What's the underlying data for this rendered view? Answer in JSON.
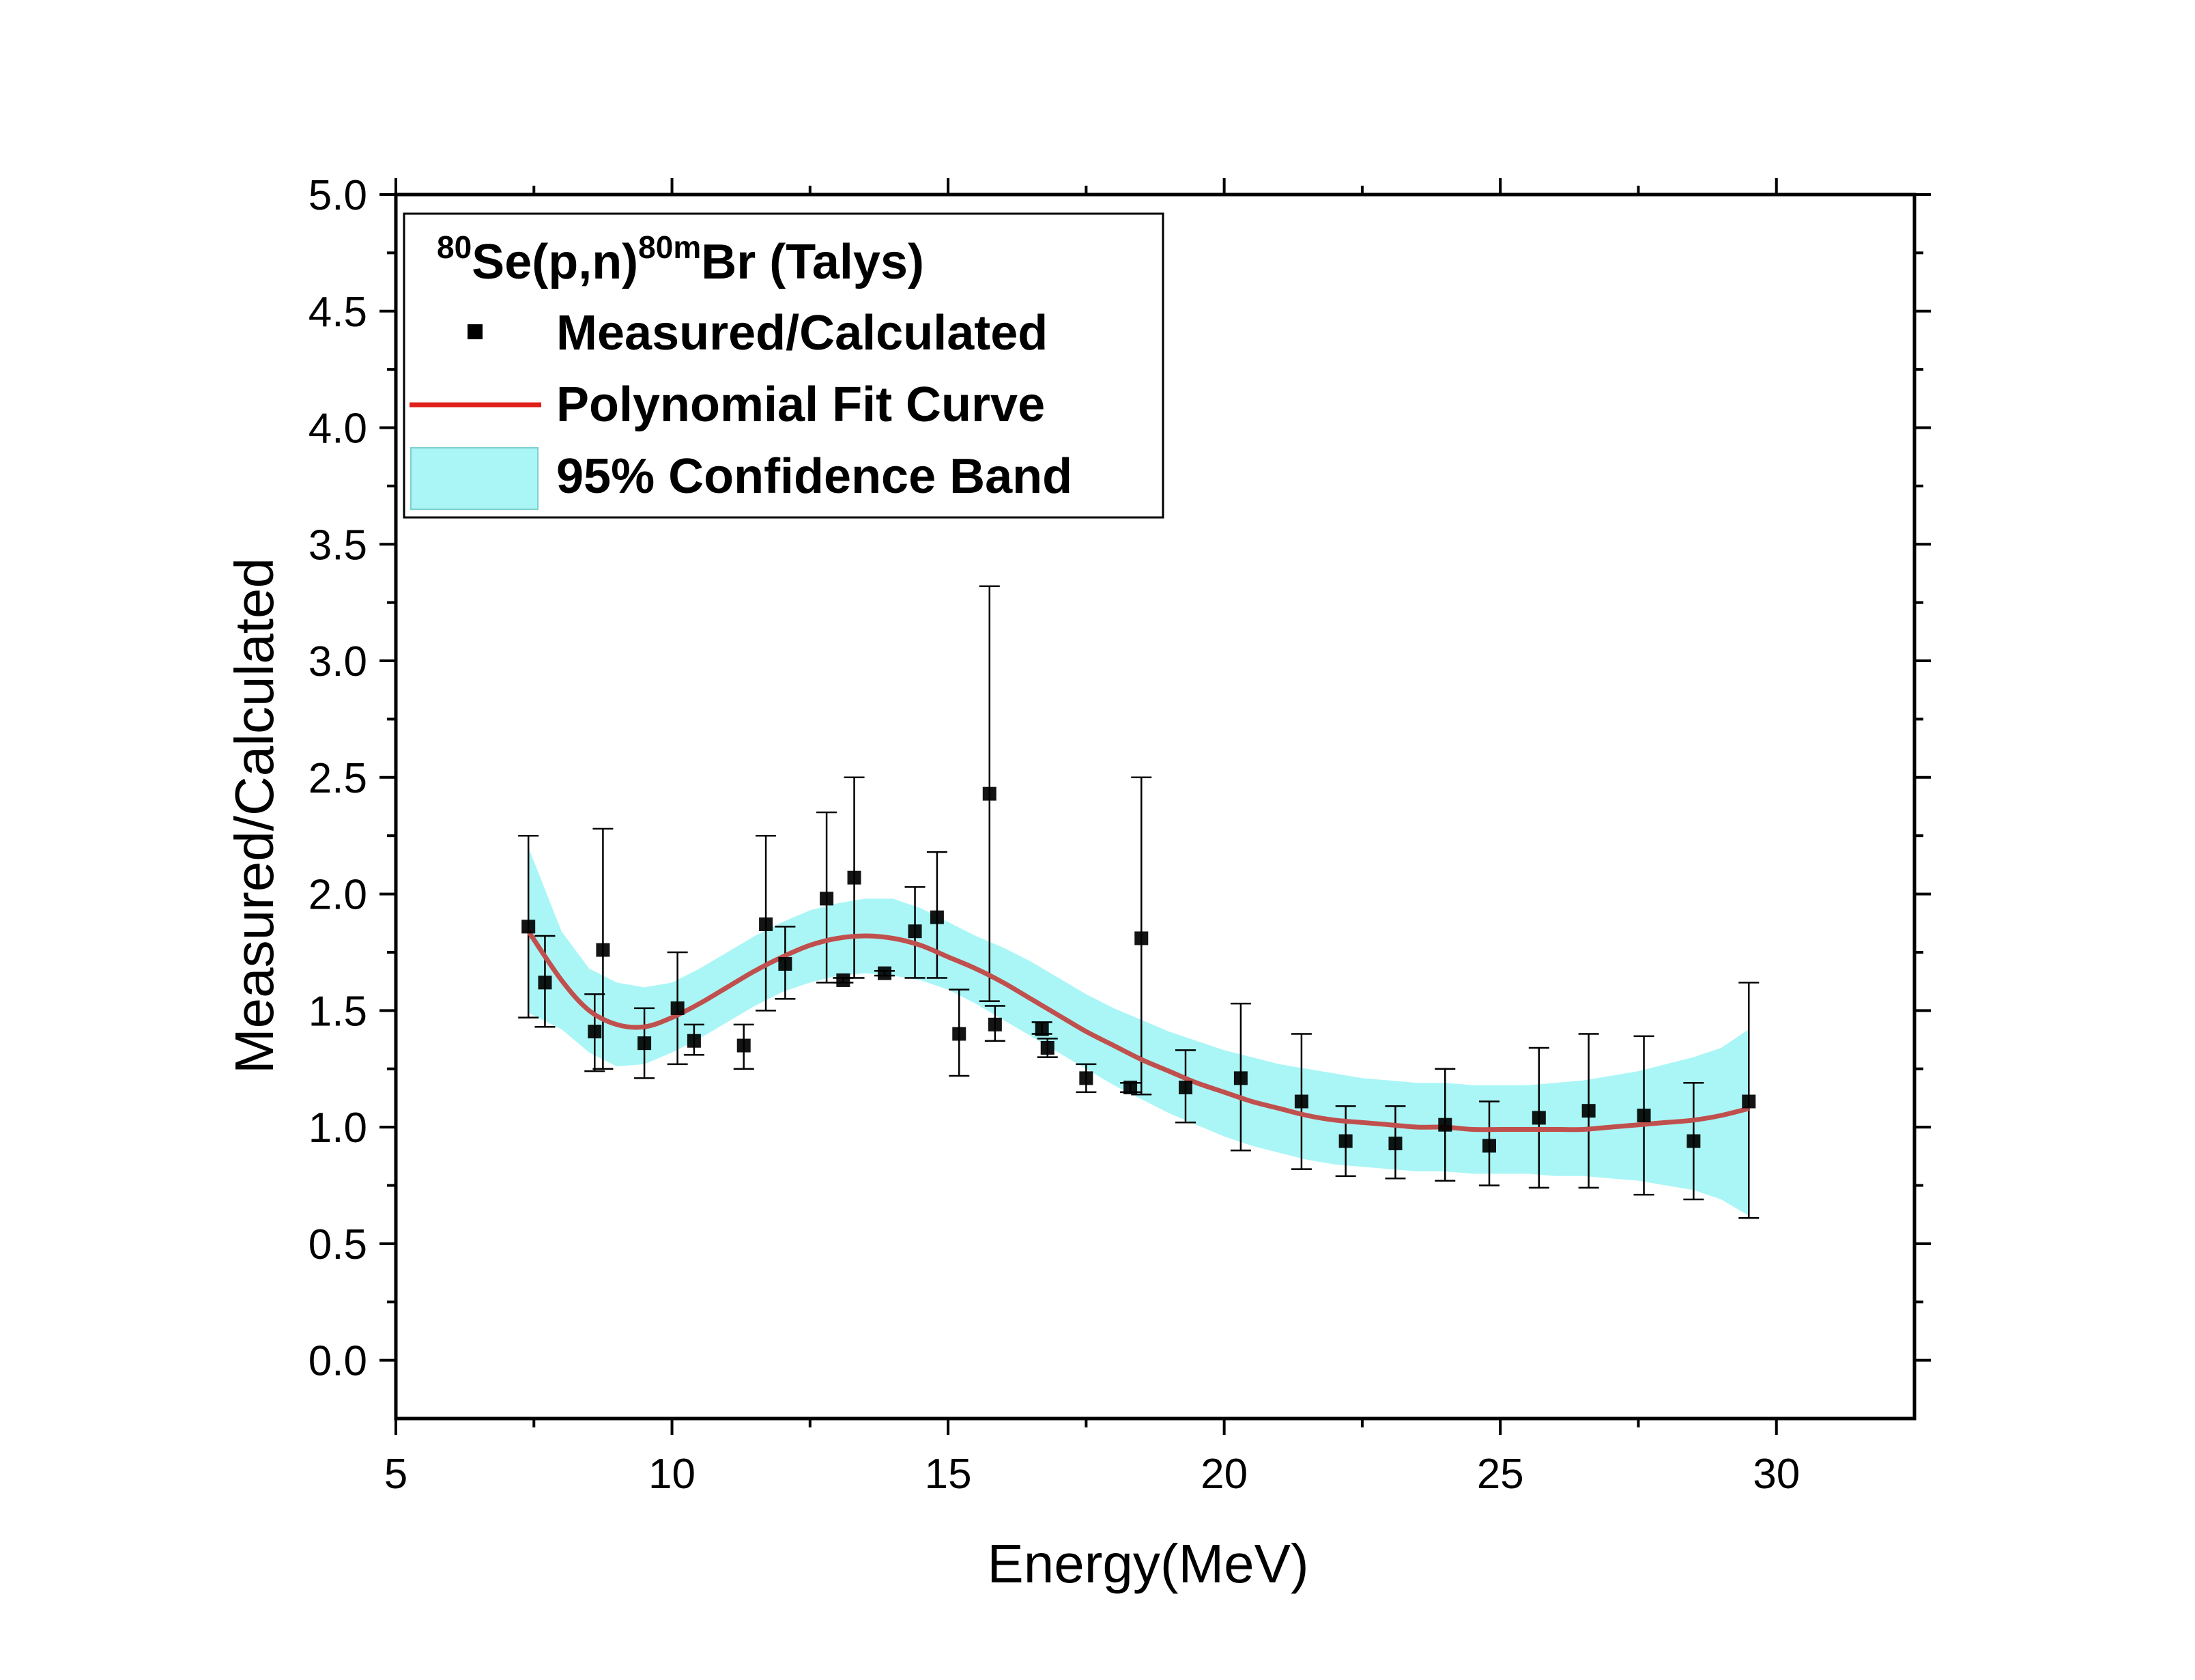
{
  "chart_data": {
    "type": "scatter",
    "title": {
      "sup1": "80",
      "main1": "Se(p,n)",
      "sup2": "80m",
      "main2": "Br (Talys)"
    },
    "xlabel": "Energy(MeV)",
    "ylabel": "Measured/Calculated",
    "xlim": [
      5,
      32.5
    ],
    "ylim": [
      -0.25,
      5.0
    ],
    "x_ticks": [
      5,
      10,
      15,
      20,
      25,
      30
    ],
    "x_tick_labels": [
      "5",
      "10",
      "15",
      "20",
      "25",
      "30"
    ],
    "y_ticks": [
      0.0,
      0.5,
      1.0,
      1.5,
      2.0,
      2.5,
      3.0,
      3.5,
      4.0,
      4.5,
      5.0
    ],
    "y_tick_labels": [
      "0.0",
      "0.5",
      "1.0",
      "1.5",
      "2.0",
      "2.5",
      "3.0",
      "3.5",
      "4.0",
      "4.5",
      "5.0"
    ],
    "legend": {
      "position": "top-left",
      "entries": [
        "Measured/Calculated",
        "Polynomial Fit Curve",
        "95% Confidence Band"
      ]
    },
    "colors": {
      "points": "#000000",
      "fit": "#c0504d",
      "fit_legend": "#e0201a",
      "band": "#aaf6f6",
      "band_edge": "#7ecece",
      "axes": "#000000"
    },
    "series": [
      {
        "name": "Measured/Calculated",
        "kind": "points-with-errorbars",
        "points": [
          {
            "x": 7.4,
            "y": 1.86,
            "lo": 1.47,
            "hi": 2.25
          },
          {
            "x": 7.7,
            "y": 1.62,
            "lo": 1.43,
            "hi": 1.82
          },
          {
            "x": 8.6,
            "y": 1.41,
            "lo": 1.24,
            "hi": 1.57
          },
          {
            "x": 8.75,
            "y": 1.76,
            "lo": 1.25,
            "hi": 2.28
          },
          {
            "x": 9.5,
            "y": 1.36,
            "lo": 1.21,
            "hi": 1.51
          },
          {
            "x": 10.1,
            "y": 1.51,
            "lo": 1.27,
            "hi": 1.75
          },
          {
            "x": 10.4,
            "y": 1.37,
            "lo": 1.31,
            "hi": 1.44
          },
          {
            "x": 11.3,
            "y": 1.35,
            "lo": 1.25,
            "hi": 1.44
          },
          {
            "x": 11.7,
            "y": 1.87,
            "lo": 1.5,
            "hi": 2.25
          },
          {
            "x": 12.05,
            "y": 1.7,
            "lo": 1.55,
            "hi": 1.86
          },
          {
            "x": 12.8,
            "y": 1.98,
            "lo": 1.62,
            "hi": 2.35
          },
          {
            "x": 13.1,
            "y": 1.63,
            "lo": 1.62,
            "hi": 1.64
          },
          {
            "x": 13.3,
            "y": 2.07,
            "lo": 1.64,
            "hi": 2.5
          },
          {
            "x": 13.85,
            "y": 1.66,
            "lo": 1.65,
            "hi": 1.67
          },
          {
            "x": 14.4,
            "y": 1.84,
            "lo": 1.64,
            "hi": 2.03
          },
          {
            "x": 14.8,
            "y": 1.9,
            "lo": 1.64,
            "hi": 2.18
          },
          {
            "x": 15.2,
            "y": 1.4,
            "lo": 1.22,
            "hi": 1.59
          },
          {
            "x": 15.75,
            "y": 2.43,
            "lo": 1.54,
            "hi": 3.32
          },
          {
            "x": 15.85,
            "y": 1.44,
            "lo": 1.37,
            "hi": 1.52
          },
          {
            "x": 16.7,
            "y": 1.42,
            "lo": 1.4,
            "hi": 1.45
          },
          {
            "x": 16.8,
            "y": 1.34,
            "lo": 1.3,
            "hi": 1.38
          },
          {
            "x": 17.5,
            "y": 1.21,
            "lo": 1.15,
            "hi": 1.27
          },
          {
            "x": 18.3,
            "y": 1.17,
            "lo": 1.15,
            "hi": 1.19
          },
          {
            "x": 18.5,
            "y": 1.81,
            "lo": 1.14,
            "hi": 2.5
          },
          {
            "x": 19.3,
            "y": 1.17,
            "lo": 1.02,
            "hi": 1.33
          },
          {
            "x": 20.3,
            "y": 1.21,
            "lo": 0.9,
            "hi": 1.53
          },
          {
            "x": 21.4,
            "y": 1.11,
            "lo": 0.82,
            "hi": 1.4
          },
          {
            "x": 22.2,
            "y": 0.94,
            "lo": 0.79,
            "hi": 1.09
          },
          {
            "x": 23.1,
            "y": 0.93,
            "lo": 0.78,
            "hi": 1.09
          },
          {
            "x": 24.0,
            "y": 1.01,
            "lo": 0.77,
            "hi": 1.25
          },
          {
            "x": 24.8,
            "y": 0.92,
            "lo": 0.75,
            "hi": 1.11
          },
          {
            "x": 25.7,
            "y": 1.04,
            "lo": 0.74,
            "hi": 1.34
          },
          {
            "x": 26.6,
            "y": 1.07,
            "lo": 0.74,
            "hi": 1.4
          },
          {
            "x": 27.6,
            "y": 1.05,
            "lo": 0.71,
            "hi": 1.39
          },
          {
            "x": 28.5,
            "y": 0.94,
            "lo": 0.69,
            "hi": 1.19
          },
          {
            "x": 29.5,
            "y": 1.11,
            "lo": 0.61,
            "hi": 1.62
          }
        ]
      },
      {
        "name": "Polynomial Fit Curve",
        "kind": "line",
        "x": [
          7.4,
          8.0,
          8.5,
          9.0,
          9.5,
          10.0,
          10.5,
          11.0,
          11.5,
          12.0,
          12.5,
          13.0,
          13.5,
          14.0,
          14.5,
          15.0,
          15.5,
          16.0,
          16.5,
          17.0,
          17.5,
          18.0,
          18.5,
          19.0,
          19.5,
          20.0,
          20.5,
          21.0,
          21.5,
          22.0,
          22.5,
          23.0,
          23.5,
          24.0,
          24.5,
          25.0,
          25.5,
          26.0,
          26.5,
          27.0,
          27.5,
          28.0,
          28.5,
          29.0,
          29.5
        ],
        "y": [
          1.84,
          1.63,
          1.5,
          1.44,
          1.43,
          1.47,
          1.53,
          1.6,
          1.67,
          1.73,
          1.78,
          1.81,
          1.82,
          1.81,
          1.78,
          1.73,
          1.68,
          1.62,
          1.55,
          1.48,
          1.41,
          1.35,
          1.29,
          1.24,
          1.19,
          1.15,
          1.11,
          1.08,
          1.05,
          1.03,
          1.02,
          1.01,
          1.0,
          1.0,
          0.99,
          0.99,
          0.99,
          0.99,
          0.99,
          1.0,
          1.01,
          1.02,
          1.03,
          1.05,
          1.08
        ]
      },
      {
        "name": "95% Confidence Band",
        "kind": "band",
        "x": [
          7.4,
          8.0,
          8.5,
          9.0,
          9.5,
          10.0,
          10.5,
          11.0,
          11.5,
          12.0,
          12.5,
          13.0,
          13.5,
          14.0,
          14.5,
          15.0,
          15.5,
          16.0,
          16.5,
          17.0,
          17.5,
          18.0,
          18.5,
          19.0,
          19.5,
          20.0,
          20.5,
          21.0,
          21.5,
          22.0,
          22.5,
          23.0,
          23.5,
          24.0,
          24.5,
          25.0,
          25.5,
          26.0,
          26.5,
          27.0,
          27.5,
          28.0,
          28.5,
          29.0,
          29.5
        ],
        "lower": [
          1.49,
          1.42,
          1.32,
          1.26,
          1.27,
          1.32,
          1.38,
          1.45,
          1.52,
          1.58,
          1.62,
          1.65,
          1.66,
          1.65,
          1.63,
          1.59,
          1.53,
          1.46,
          1.39,
          1.32,
          1.25,
          1.18,
          1.12,
          1.06,
          1.01,
          0.96,
          0.92,
          0.89,
          0.86,
          0.84,
          0.83,
          0.82,
          0.81,
          0.81,
          0.8,
          0.8,
          0.8,
          0.79,
          0.79,
          0.78,
          0.77,
          0.75,
          0.73,
          0.69,
          0.62
        ],
        "upper": [
          2.2,
          1.84,
          1.68,
          1.62,
          1.6,
          1.62,
          1.68,
          1.75,
          1.82,
          1.88,
          1.93,
          1.96,
          1.98,
          1.98,
          1.94,
          1.88,
          1.82,
          1.77,
          1.71,
          1.64,
          1.57,
          1.51,
          1.46,
          1.41,
          1.37,
          1.33,
          1.3,
          1.27,
          1.25,
          1.23,
          1.21,
          1.2,
          1.19,
          1.19,
          1.18,
          1.18,
          1.18,
          1.19,
          1.2,
          1.22,
          1.24,
          1.27,
          1.3,
          1.34,
          1.42
        ]
      }
    ]
  }
}
